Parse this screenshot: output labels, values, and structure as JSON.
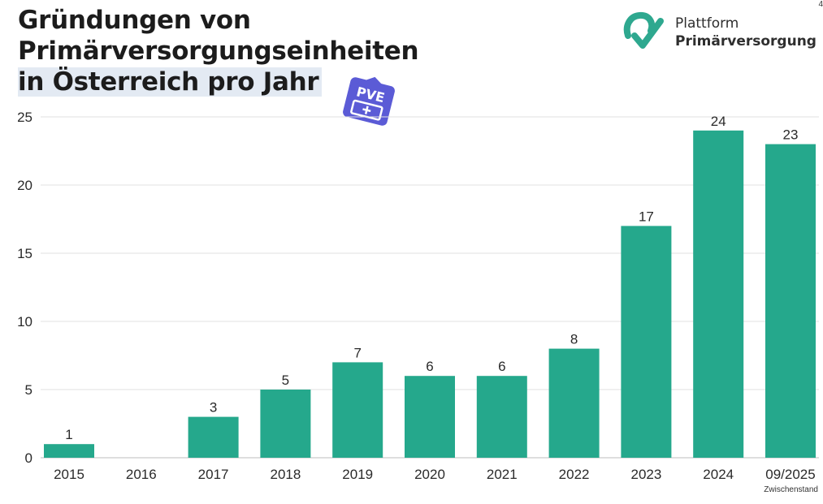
{
  "title": {
    "line1": "Gründungen von",
    "line2": "Primärversorgungseinheiten",
    "line3": "in Österreich pro Jahr"
  },
  "brand": {
    "line1": "Plattform",
    "line2": "Primärversorgung",
    "logo_icon": "pv-logo-icon",
    "color": "#2ea88f"
  },
  "badge": {
    "text": "PVE",
    "icon": "pve-badge-icon",
    "color": "#5b5bd6"
  },
  "corner_mark": "4",
  "chart_data": {
    "type": "bar",
    "categories": [
      "2015",
      "2016",
      "2017",
      "2018",
      "2019",
      "2020",
      "2021",
      "2022",
      "2023",
      "2024",
      "09/2025"
    ],
    "values": [
      1,
      null,
      3,
      5,
      7,
      6,
      6,
      8,
      17,
      24,
      23
    ],
    "data_labels": [
      "1",
      "",
      "3",
      "5",
      "7",
      "6",
      "6",
      "8",
      "17",
      "24",
      "23"
    ],
    "yticks": [
      0,
      5,
      10,
      15,
      20,
      25
    ],
    "ylim": [
      0,
      25
    ],
    "grid": true,
    "bar_color": "#25a88c",
    "xlabel": "",
    "ylabel": "",
    "last_category_note": "Zwischenstand"
  }
}
